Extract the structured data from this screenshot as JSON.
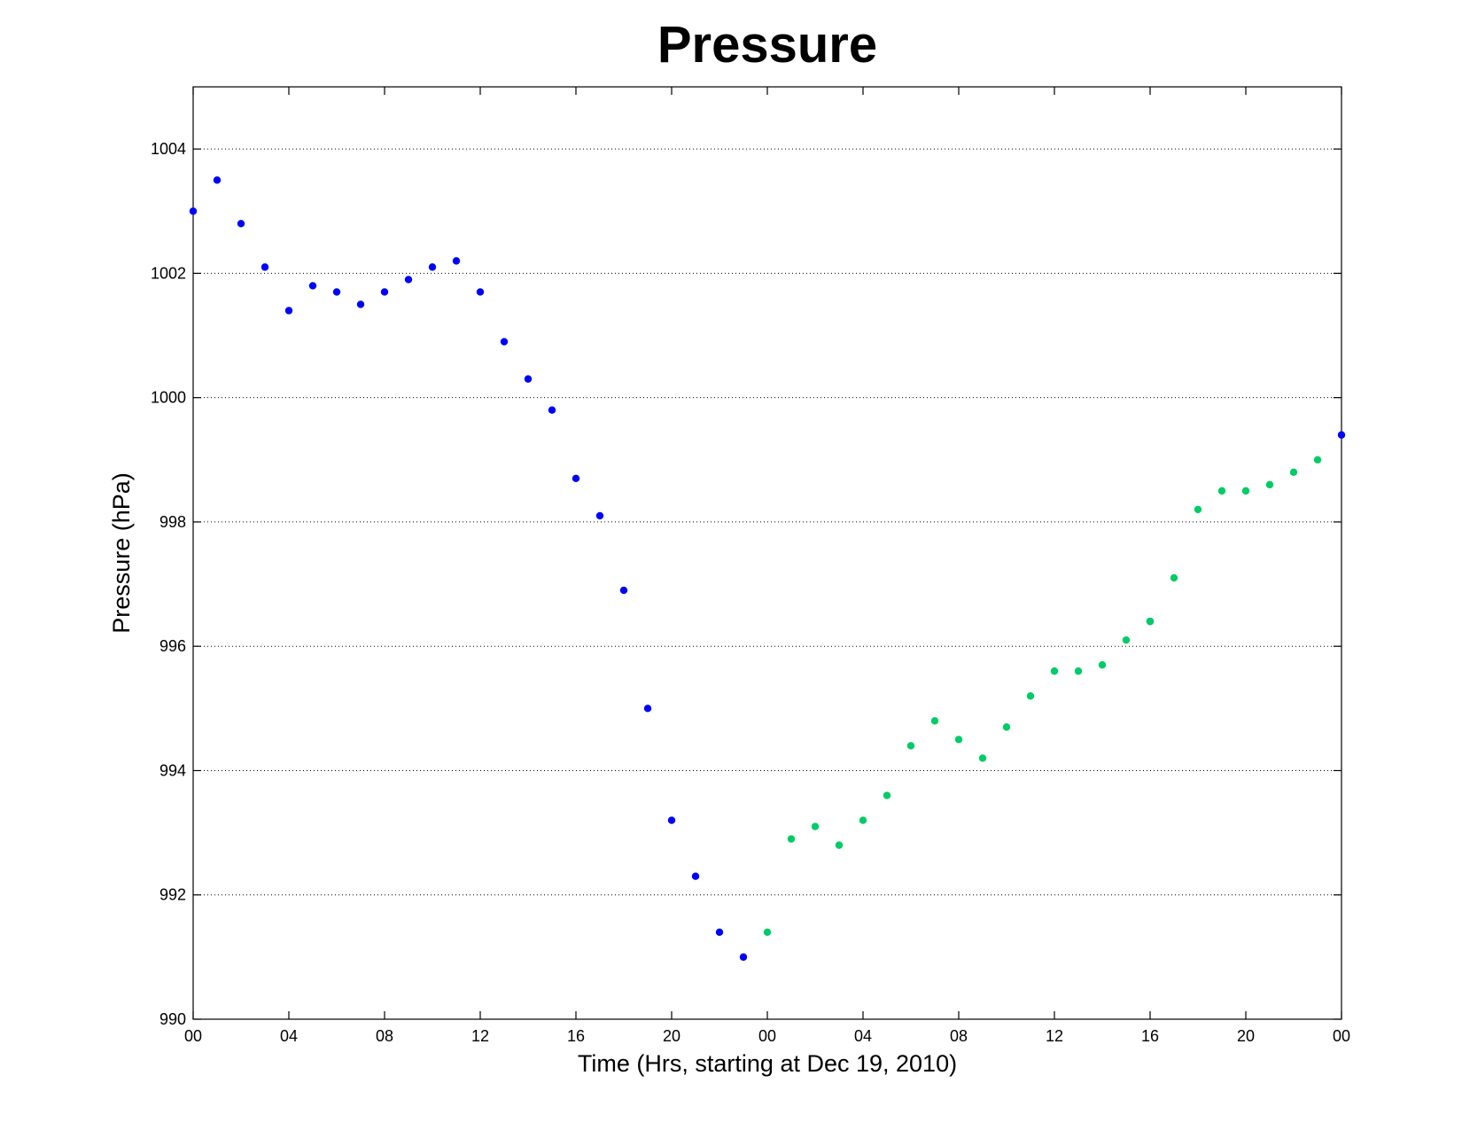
{
  "chart_data": {
    "type": "scatter",
    "title": "Pressure",
    "xlabel": "Time (Hrs, starting at Dec 19, 2010)",
    "ylabel": "Pressure (hPa)",
    "xlim": [
      0,
      48
    ],
    "ylim": [
      990,
      1005
    ],
    "grid": "y-dotted",
    "x_ticks": [
      0,
      4,
      8,
      12,
      16,
      20,
      24,
      28,
      32,
      36,
      40,
      44,
      48
    ],
    "x_tick_labels": [
      "00",
      "04",
      "08",
      "12",
      "16",
      "20",
      "00",
      "04",
      "08",
      "12",
      "16",
      "20",
      "00"
    ],
    "y_ticks": [
      990,
      992,
      994,
      996,
      998,
      1000,
      1002,
      1004
    ],
    "y_tick_labels": [
      "990",
      "992",
      "994",
      "996",
      "998",
      "1000",
      "1002",
      "1004"
    ],
    "series": [
      {
        "color": "#0000ff",
        "x": [
          0,
          1,
          2,
          3,
          4,
          5,
          6,
          7,
          8,
          9,
          10,
          11,
          12,
          13,
          14,
          15,
          16,
          17,
          18,
          19,
          20,
          21,
          22,
          23,
          40,
          48
        ],
        "y": [
          1003.0,
          1003.5,
          1002.8,
          1002.1,
          1001.4,
          1001.8,
          1001.7,
          1001.5,
          1001.7,
          1001.9,
          1002.1,
          1002.2,
          1001.7,
          1000.9,
          1000.3,
          999.8,
          998.7,
          998.1,
          996.9,
          995.0,
          993.2,
          992.3,
          991.4,
          991.0,
          996.4,
          999.4
        ]
      },
      {
        "color": "#00cc66",
        "x": [
          24,
          25,
          26,
          27,
          28,
          29,
          30,
          31,
          32,
          33,
          34,
          35,
          36,
          37,
          38,
          39,
          40,
          41,
          42,
          43,
          44,
          45,
          46,
          47
        ],
        "y": [
          991.4,
          992.9,
          993.1,
          992.8,
          993.2,
          993.6,
          994.4,
          994.8,
          994.5,
          994.2,
          994.7,
          995.2,
          995.6,
          995.6,
          995.7,
          996.1,
          996.4,
          997.1,
          998.2,
          998.5,
          998.5,
          998.6,
          998.8,
          999.0
        ]
      }
    ]
  }
}
